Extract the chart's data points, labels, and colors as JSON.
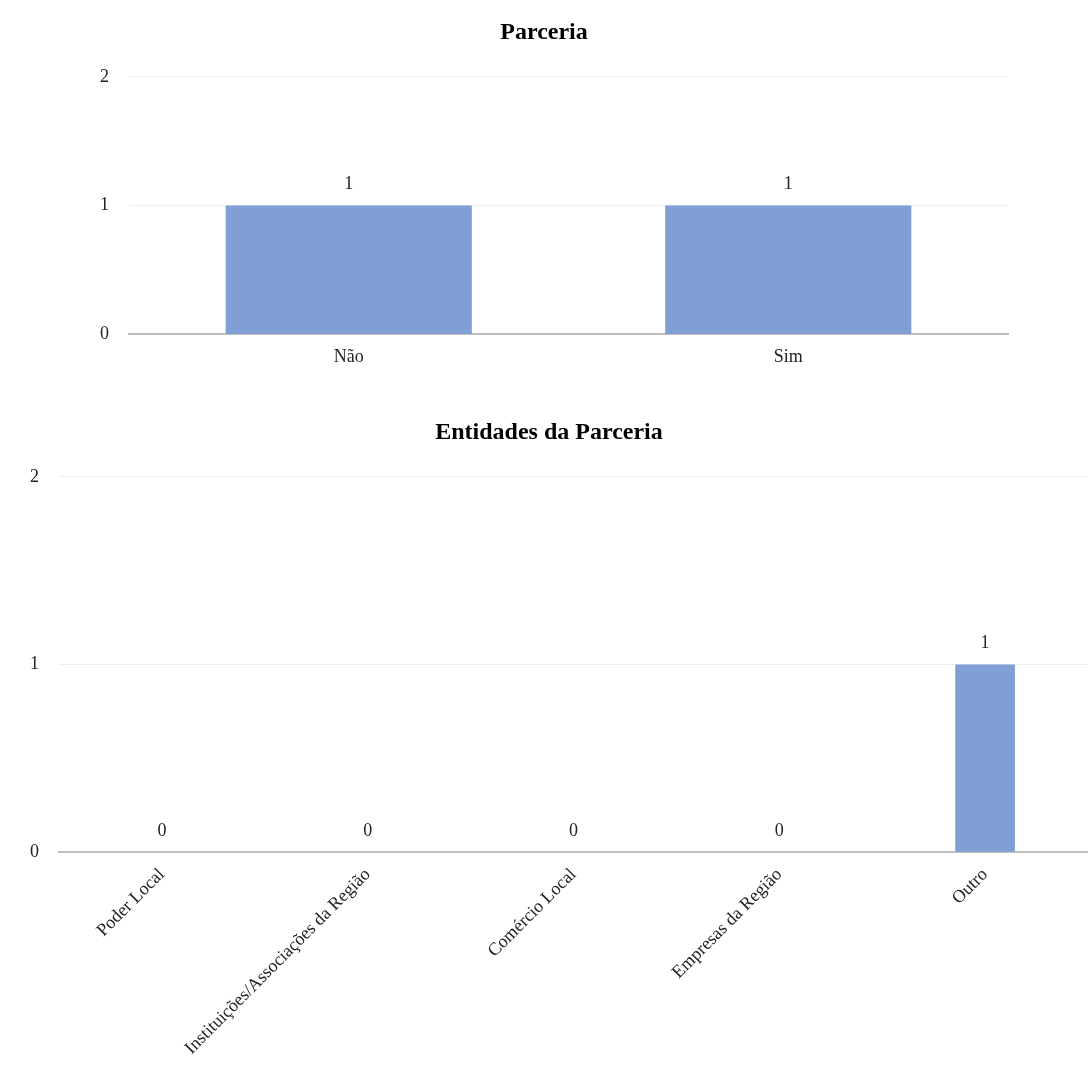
{
  "chart_data": [
    {
      "type": "bar",
      "title": "Parceria",
      "categories": [
        "Não",
        "Sim"
      ],
      "values": [
        1,
        1
      ],
      "color": "#7f9fd5",
      "ylim": [
        0,
        2
      ],
      "yticks": [
        0,
        1,
        2
      ],
      "grid": "y",
      "data_labels": true
    },
    {
      "type": "bar",
      "title": "Entidades da Parceria",
      "categories": [
        "Poder Local",
        "Instituições/Associações da Região",
        "Comércio Local",
        "Empresas da Região",
        "Outro"
      ],
      "values": [
        0,
        0,
        0,
        0,
        1
      ],
      "color": "#7f9fd5",
      "ylim": [
        0,
        2
      ],
      "yticks": [
        0,
        1,
        2
      ],
      "grid": "y",
      "data_labels": true
    }
  ]
}
